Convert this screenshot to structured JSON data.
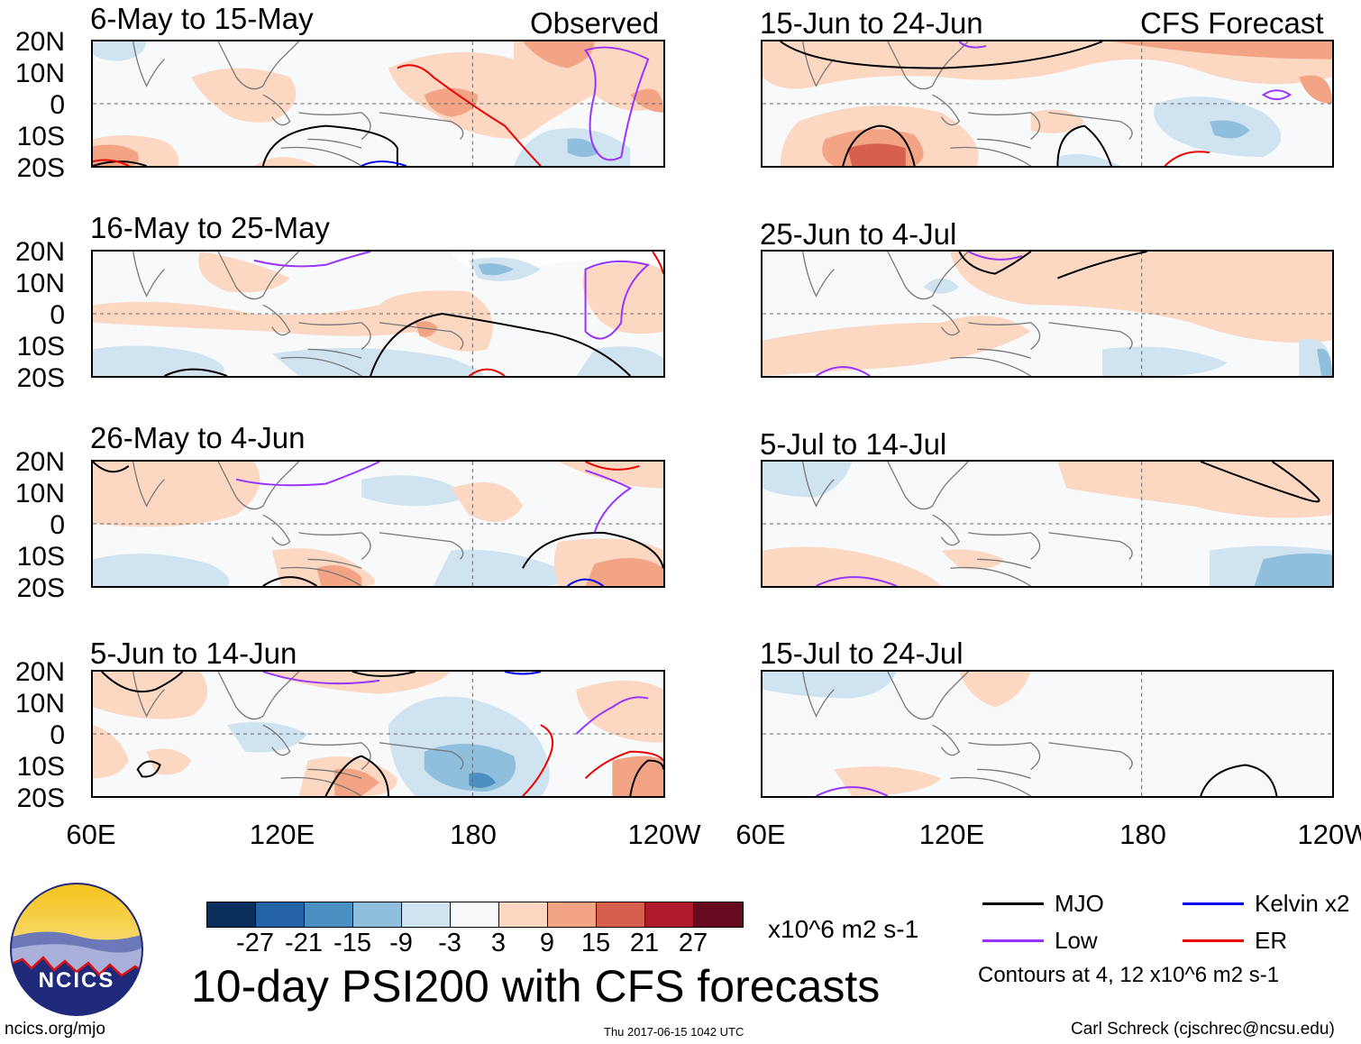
{
  "chart_data": {
    "type": "heatmap",
    "title": "10-day PSI200 with CFS forecasts",
    "variable": "PSI200 anomaly",
    "units": "x10^6 m2 s-1",
    "columns": [
      "Observed",
      "CFS Forecast"
    ],
    "lat_ticks": [
      "20N",
      "10N",
      "0",
      "10S",
      "20S"
    ],
    "lon_ticks": [
      "60E",
      "120E",
      "180",
      "120W"
    ],
    "lon_range": [
      60,
      240
    ],
    "lat_range": [
      -20,
      20
    ],
    "colorbar": {
      "labels": [
        "-27",
        "-21",
        "-15",
        "-9",
        "-3",
        "3",
        "9",
        "15",
        "21",
        "27"
      ],
      "colors": [
        "#0b2f5c",
        "#2463a6",
        "#4b90c2",
        "#8fbfdc",
        "#cfe3f0",
        "#f7f9fb",
        "#fcd7c2",
        "#f2a484",
        "#d6604d",
        "#b0192b",
        "#670a1f"
      ]
    },
    "contour_legend": [
      {
        "label": "MJO",
        "color": "#000000"
      },
      {
        "label": "Low",
        "color": "#9933ff"
      },
      {
        "label": "Kelvin x2",
        "color": "#0000ee"
      },
      {
        "label": "ER",
        "color": "#ee0000"
      }
    ],
    "contour_note": "Contours at 4, 12 x10^6 m2 s-1",
    "panels": [
      {
        "id": "obs1",
        "label": "6-May to 15-May",
        "column": "Observed"
      },
      {
        "id": "obs2",
        "label": "16-May to 25-May",
        "column": "Observed"
      },
      {
        "id": "obs3",
        "label": "26-May to 4-Jun",
        "column": "Observed"
      },
      {
        "id": "obs4",
        "label": "5-Jun to 14-Jun",
        "column": "Observed"
      },
      {
        "id": "fc1",
        "label": "15-Jun to 24-Jun",
        "column": "CFS Forecast"
      },
      {
        "id": "fc2",
        "label": "25-Jun to 4-Jul",
        "column": "CFS Forecast"
      },
      {
        "id": "fc3",
        "label": "5-Jul to 14-Jul",
        "column": "CFS Forecast"
      },
      {
        "id": "fc4",
        "label": "15-Jul to 24-Jul",
        "column": "CFS Forecast"
      }
    ]
  },
  "header": {
    "observed": "Observed",
    "forecast": "CFS Forecast"
  },
  "footer": {
    "site": "ncics.org/mjo",
    "timestamp": "Thu 2017-06-15 1042 UTC",
    "author": "Carl Schreck (cjschrec@ncsu.edu)",
    "logo_text": "NCICS"
  }
}
